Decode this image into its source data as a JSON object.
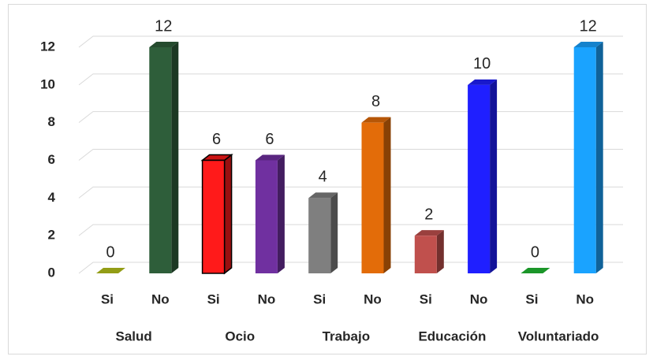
{
  "chart_data": {
    "type": "bar3d",
    "categories": [
      "Si",
      "No",
      "Si",
      "No",
      "Si",
      "No",
      "Si",
      "No",
      "Si",
      "No"
    ],
    "groups": [
      "Salud",
      "Ocio",
      "Trabajo",
      "Educación",
      "Voluntariado"
    ],
    "values": [
      0,
      12,
      6,
      6,
      4,
      8,
      2,
      10,
      0,
      12
    ],
    "colors": [
      "#b8c41c",
      "#2e5e3a",
      "#ff1a1a",
      "#7030a0",
      "#7f7f7f",
      "#e36c09",
      "#c0504d",
      "#1f1fff",
      "#22bb33",
      "#1aa3ff"
    ],
    "ylim": [
      0,
      12
    ],
    "yticks": [
      0,
      2,
      4,
      6,
      8,
      10,
      12
    ],
    "grid": true
  }
}
